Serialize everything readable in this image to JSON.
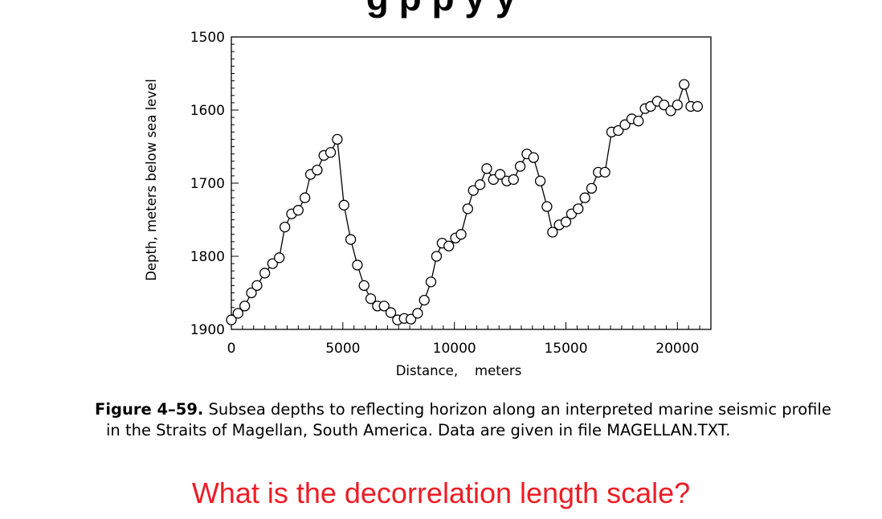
{
  "slide": {
    "title": "g    p    p    y  y",
    "figure_label": "Figure 4–59.",
    "caption_line1": "Subsea depths to reflecting horizon along an interpreted marine seismic profile",
    "caption_line2": "in the Straits of Magellan, South America. Data are given in file MAGELLAN.TXT.",
    "question": "What is the decorrelation length scale?",
    "question_color": "#ee1c25"
  },
  "chart_data": {
    "type": "line",
    "markers": "open-circle",
    "title": "",
    "xlabel": "Distance,    meters",
    "ylabel": "Depth, meters below sea level",
    "xlim": [
      0,
      21500
    ],
    "ylim": [
      1500,
      1900
    ],
    "y_inverted": true,
    "grid": false,
    "x_ticks": [
      0,
      5000,
      10000,
      15000,
      20000
    ],
    "y_ticks": [
      1500,
      1600,
      1700,
      1800,
      1900
    ],
    "series": [
      {
        "x": [
          0,
          300,
          600,
          900,
          1150,
          1500,
          1850,
          2150,
          2400,
          2700,
          3000,
          3300,
          3550,
          3850,
          4150,
          4450,
          4750,
          5050,
          5350,
          5650,
          5950,
          6250,
          6550,
          6850,
          7150,
          7450,
          7750,
          8050,
          8350,
          8650,
          8950,
          9200,
          9450,
          9750,
          10050,
          10300,
          10600,
          10850,
          11150,
          11450,
          11750,
          12050,
          12350,
          12650,
          12950,
          13250,
          13550,
          13850,
          14150,
          14400,
          14700,
          15000,
          15250,
          15550,
          15850,
          16150,
          16450,
          16750,
          17050,
          17350,
          17650,
          17950,
          18250,
          18550,
          18800,
          19100,
          19400,
          19700,
          20000,
          20300,
          20600,
          20900
        ],
        "y": [
          1887,
          1878,
          1868,
          1850,
          1840,
          1823,
          1810,
          1802,
          1760,
          1742,
          1737,
          1720,
          1688,
          1682,
          1662,
          1658,
          1640,
          1730,
          1777,
          1812,
          1840,
          1858,
          1868,
          1868,
          1877,
          1887,
          1885,
          1886,
          1878,
          1860,
          1835,
          1800,
          1782,
          1786,
          1775,
          1770,
          1735,
          1710,
          1702,
          1680,
          1695,
          1688,
          1697,
          1695,
          1677,
          1660,
          1665,
          1697,
          1732,
          1767,
          1757,
          1753,
          1742,
          1735,
          1720,
          1707,
          1685,
          1685,
          1630,
          1628,
          1620,
          1612,
          1615,
          1598,
          1595,
          1588,
          1593,
          1601,
          1593,
          1565,
          1595,
          1595
        ]
      }
    ]
  }
}
